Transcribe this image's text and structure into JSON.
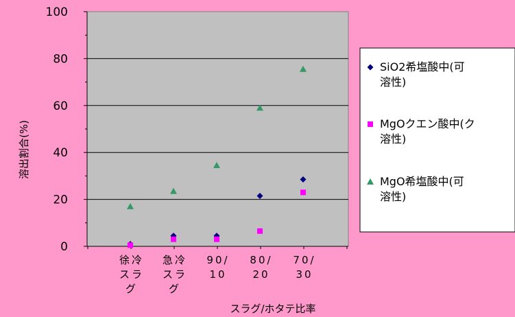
{
  "chart_data": {
    "type": "scatter",
    "categories": [
      [
        "徐冷",
        "スラ",
        "グ"
      ],
      [
        "急冷",
        "スラ",
        "グ"
      ],
      [
        "90/",
        "10"
      ],
      [
        "80/",
        "20"
      ],
      [
        "70/",
        "30"
      ]
    ],
    "ylim": [
      0,
      100
    ],
    "yticks": [
      "0",
      "20",
      "40",
      "60",
      "80",
      "100"
    ],
    "xlabel": "スラグ/ホタテ比率",
    "ylabel": "溶出割合(%)",
    "grid": true,
    "legend_position": "right",
    "plot_background": "#c0c0c0",
    "series": [
      {
        "name": [
          "SiO2希塩酸中(可",
          "溶性)"
        ],
        "marker": "diamond",
        "color": "#000080",
        "values": [
          1.0,
          4.5,
          4.5,
          21.5,
          28.5
        ]
      },
      {
        "name": [
          "MgOクエン酸中(ク",
          "溶性)"
        ],
        "marker": "square",
        "color": "#ff00ff",
        "values": [
          0.5,
          3.0,
          3.0,
          6.5,
          23.0
        ]
      },
      {
        "name": [
          "MgO希塩酸中(可",
          "溶性)"
        ],
        "marker": "triangle",
        "color": "#339966",
        "values": [
          17.0,
          23.5,
          34.5,
          59.0,
          75.5
        ]
      }
    ]
  }
}
